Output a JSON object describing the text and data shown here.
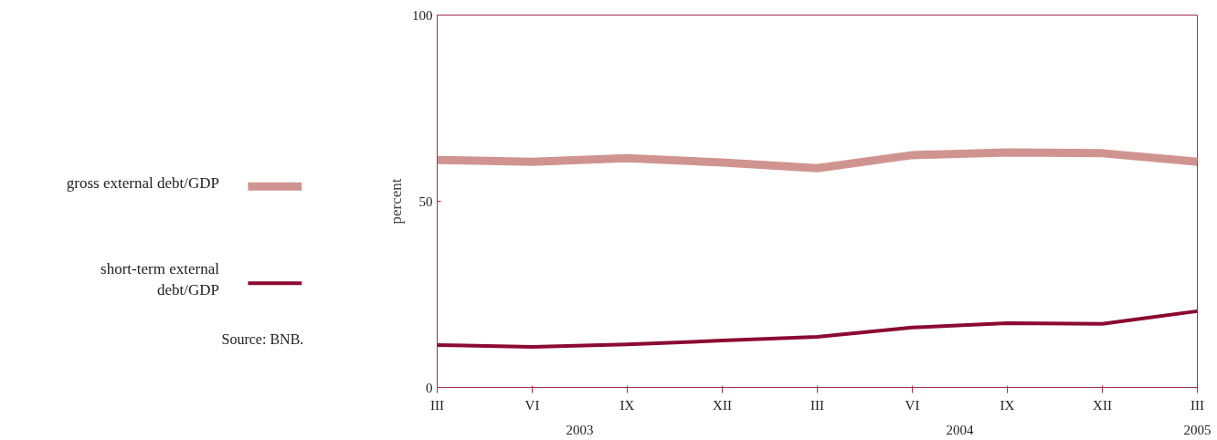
{
  "chart_data": {
    "type": "line",
    "ylabel": "percent",
    "categories": [
      "III",
      "VI",
      "IX",
      "XII",
      "III",
      "VI",
      "IX",
      "XII",
      "III"
    ],
    "series": [
      {
        "name": "gross external debt/GDP",
        "color": "#d09490",
        "values": [
          61.1,
          60.6,
          61.6,
          60.4,
          58.9,
          62.4,
          63.1,
          62.9,
          60.6
        ]
      },
      {
        "name": "short-term external debt/GDP",
        "color": "#8b0a32",
        "values": [
          11.4,
          10.9,
          11.6,
          12.6,
          13.6,
          16.1,
          17.3,
          17.1,
          20.5
        ]
      }
    ],
    "ylim": [
      0,
      100
    ],
    "yticks": [
      0,
      50,
      100
    ],
    "grid": false,
    "legend": "left",
    "marker": "none",
    "line_style": "solid",
    "annotations": [
      "2003",
      "2004",
      "2005",
      "Source: BNB."
    ]
  }
}
